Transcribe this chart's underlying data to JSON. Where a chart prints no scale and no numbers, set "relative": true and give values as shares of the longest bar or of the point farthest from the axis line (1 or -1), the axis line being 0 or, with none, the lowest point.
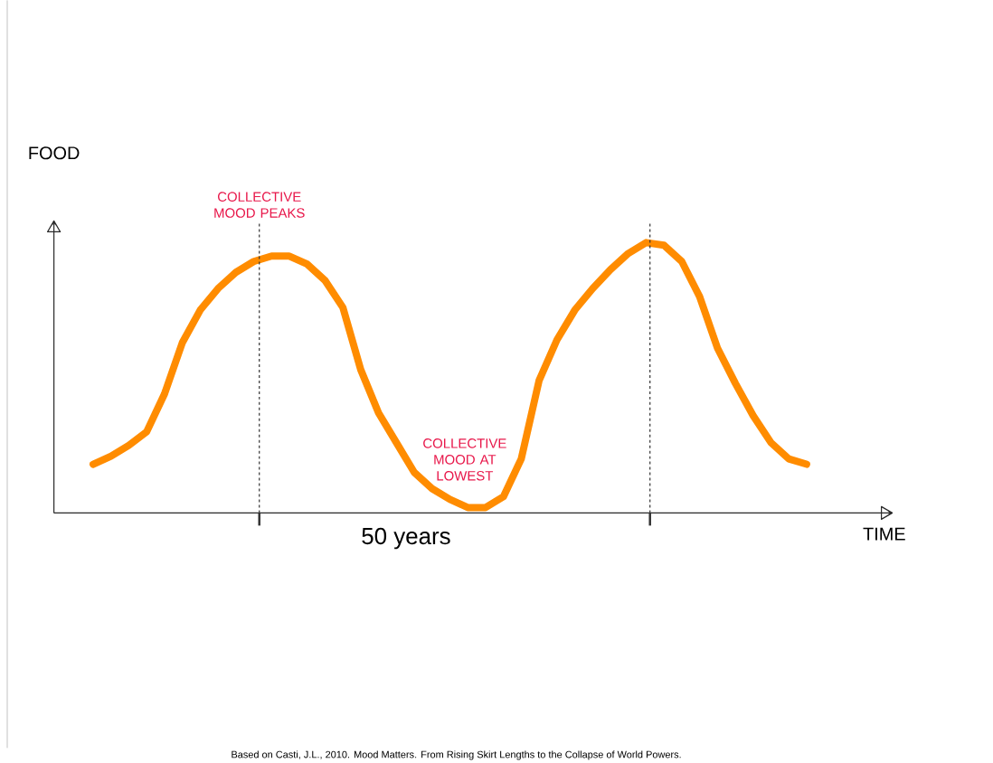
{
  "chart_data": {
    "type": "line",
    "relative": true,
    "ylabel": "FOOD",
    "xlabel": "TIME",
    "line_style": "solid",
    "categories": [
      null,
      null,
      null,
      null,
      null,
      null,
      null,
      null,
      null,
      null,
      null,
      null,
      null,
      null,
      null,
      null,
      null,
      null,
      null,
      null,
      null,
      null,
      null,
      null,
      null,
      null,
      null,
      null,
      null,
      null,
      null,
      null,
      null,
      null,
      null,
      null,
      null,
      null,
      null,
      null,
      null
    ],
    "series": [
      {
        "color": "#ff8c00",
        "values": [
          0.18,
          0.21,
          0.25,
          0.3,
          0.44,
          0.63,
          0.75,
          0.83,
          0.89,
          0.93,
          0.95,
          0.95,
          0.92,
          0.86,
          0.76,
          0.53,
          0.37,
          0.26,
          0.15,
          0.09,
          0.05,
          0.02,
          0.02,
          0.06,
          0.2,
          0.49,
          0.64,
          0.75,
          0.83,
          0.9,
          0.96,
          1,
          0.99,
          0.93,
          0.8,
          0.61,
          0.48,
          0.36,
          0.26,
          0.2,
          0.18
        ]
      }
    ],
    "annotations": [
      "COLLECTIVE MOOD PEAKS",
      "COLLECTIVE MOOD AT LOWEST",
      "50 years",
      "Based on Casti, J.L., 2010. Mood Matters. From Rising Skirt Lengths to the Collapse of World Powers."
    ]
  }
}
